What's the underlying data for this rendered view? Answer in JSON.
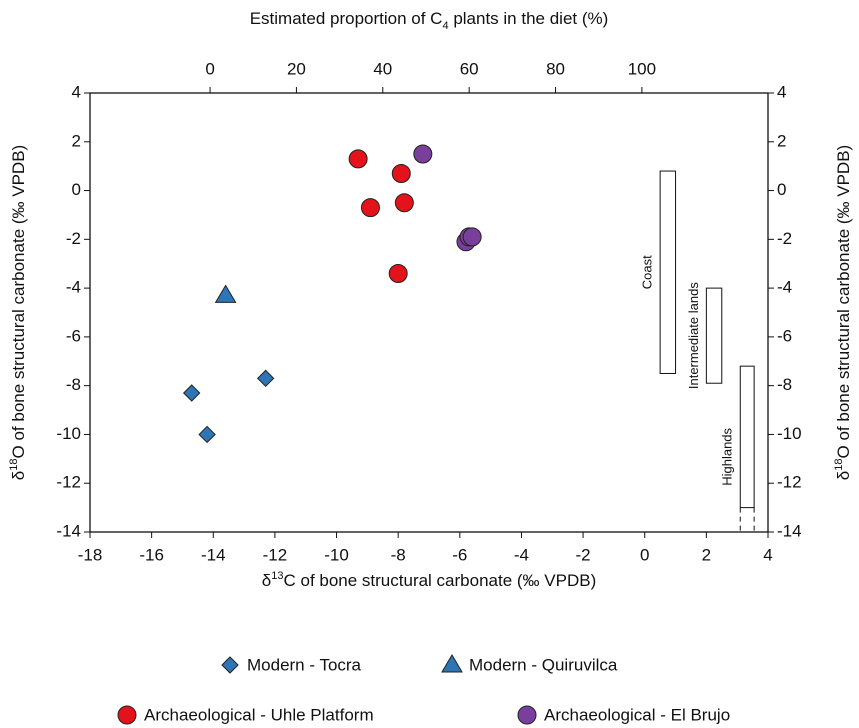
{
  "chart_data": {
    "type": "scatter",
    "x_label": {
      "pre": "δ",
      "sup": "13",
      "post": "C of bone structural carbonate (‰ VPDB)"
    },
    "y_label": {
      "pre": "δ",
      "sup": "18",
      "post": "O of bone structural carbonate (‰ VPDB)"
    },
    "x2_label": {
      "pre": "Estimated proportion of C",
      "sub": "4",
      "post": " plants in the diet (%)"
    },
    "xlim": [
      -18,
      4
    ],
    "xticks": [
      -18,
      -16,
      -14,
      -12,
      -10,
      -8,
      -6,
      -4,
      -2,
      0,
      2,
      4
    ],
    "ylim": [
      -14,
      4
    ],
    "yticks": [
      -14,
      -12,
      -10,
      -8,
      -6,
      -4,
      -2,
      0,
      2,
      4
    ],
    "y2lim": [
      -14,
      4
    ],
    "y2ticks": [
      -14,
      -12,
      -10,
      -8,
      -6,
      -4,
      -2,
      0,
      2,
      4
    ],
    "x2lim": [
      -27.8,
      129.2
    ],
    "x2ticks": [
      0,
      20,
      40,
      60,
      80,
      100
    ],
    "series": [
      {
        "name": "Modern - Tocra",
        "color": "#2e75b6",
        "marker": "diamond",
        "x": [
          -14.7,
          -14.2,
          -12.3
        ],
        "y": [
          -8.3,
          -10,
          -7.7
        ]
      },
      {
        "name": "Modern - Quiruvilca",
        "color": "#2e75b6",
        "marker": "triangle",
        "x": [
          -13.6
        ],
        "y": [
          -4.3
        ]
      },
      {
        "name": "Archaeological - Uhle Platform",
        "color": "#e3121b",
        "marker": "circle",
        "x": [
          -9.3,
          -7.9,
          -8.9,
          -7.8,
          -8.0
        ],
        "y": [
          1.3,
          0.7,
          -0.7,
          -0.5,
          -3.4
        ]
      },
      {
        "name": "Archaeological - El Brujo",
        "color": "#7a3f9d",
        "marker": "circle",
        "x": [
          -7.2,
          -5.8,
          -5.7,
          -5.6
        ],
        "y": [
          1.5,
          -2.1,
          -1.9,
          -1.9
        ]
      }
    ],
    "ranges": [
      {
        "label": "Coast",
        "x": [
          0.5,
          1.0
        ],
        "y": [
          -7.5,
          0.8
        ]
      },
      {
        "label": "Intermediate lands",
        "x": [
          2.0,
          2.5
        ],
        "y": [
          -7.9,
          -4.0
        ]
      },
      {
        "label": "Highlands",
        "x": [
          3.1,
          3.55
        ],
        "y": [
          -13,
          -7.2
        ],
        "dashed_to": -14
      }
    ]
  }
}
